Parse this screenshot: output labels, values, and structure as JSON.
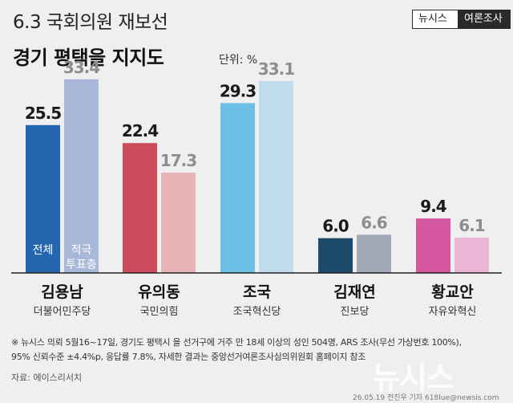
{
  "header": {
    "title_line1": "6.3 국회의원 재보선",
    "title_line2": "경기 평택을 지지도",
    "unit": "단위: %",
    "brand": "뉴시스",
    "brand_sub": "여론조사"
  },
  "chart_data": {
    "type": "bar",
    "categories": [
      "김용남",
      "유의동",
      "조국",
      "김재연",
      "황교안"
    ],
    "parties": [
      "더불어민주당",
      "국민의힘",
      "조국혁신당",
      "진보당",
      "자유와혁신"
    ],
    "series": [
      {
        "name": "전체",
        "values": [
          25.5,
          22.4,
          29.3,
          6.0,
          9.4
        ]
      },
      {
        "name": "적극 투표층",
        "values": [
          33.4,
          17.3,
          33.1,
          6.6,
          6.1
        ]
      }
    ],
    "series_label_lines": [
      [
        "전체"
      ],
      [
        "적극",
        "투표층"
      ]
    ],
    "value_labels": [
      [
        "25.5",
        "22.4",
        "29.3",
        "6.0",
        "9.4"
      ],
      [
        "33.4",
        "17.3",
        "33.1",
        "6.6",
        "6.1"
      ]
    ],
    "colors": {
      "series1": [
        "#2467b1",
        "#cd4c5b",
        "#6ebfe6",
        "#1d4a6b",
        "#d5579f"
      ],
      "series2": [
        "#a9b7d8",
        "#e6b3b6",
        "#bfdcec",
        "#a2a8b7",
        "#e9b6d5"
      ]
    },
    "ylim": [
      0,
      36
    ],
    "legend": "inside-first-group",
    "grid": false
  },
  "footnote": {
    "line1": "※ 뉴시스 의뢰 5월16~17일, 경기도 평택시 을 선거구에 거주 만 18세 이상의 성인 504명, ARS 조사(무선 가상번호 100%),",
    "line2": "95% 신뢰수준 ±4.4%p, 응답률 7.8%, 자세한 결과는 중앙선거여론조사심의위원회 홈페이지 참조"
  },
  "source": "자료: 에이스리서치",
  "watermark": "뉴시스",
  "credit": "26.05.19 전진우 기자 618lue@newsis.com"
}
